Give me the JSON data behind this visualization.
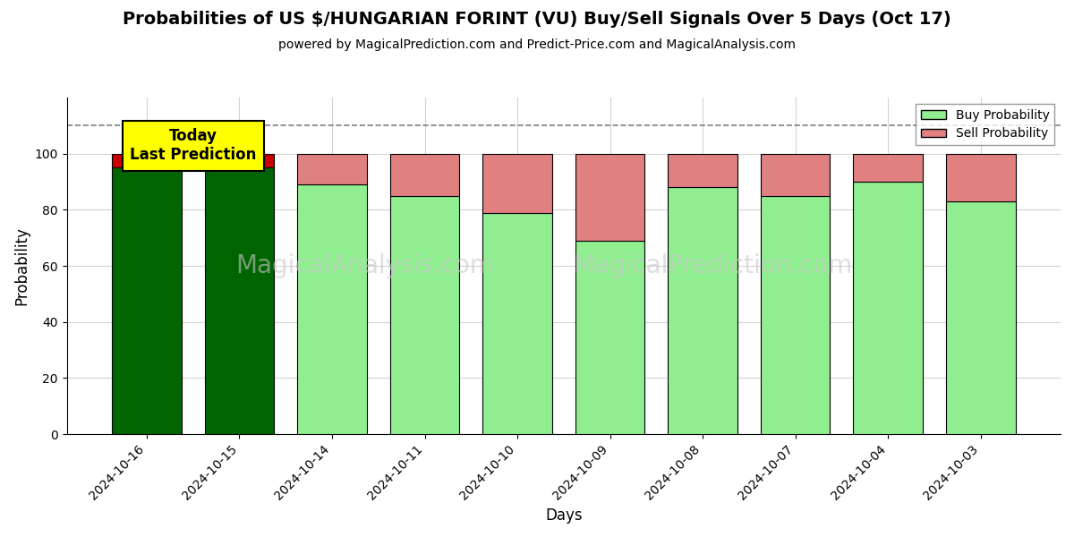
{
  "title": "Probabilities of US $/HUNGARIAN FORINT (VU) Buy/Sell Signals Over 5 Days (Oct 17)",
  "subtitle": "powered by MagicalPrediction.com and Predict-Price.com and MagicalAnalysis.com",
  "xlabel": "Days",
  "ylabel": "Probability",
  "dates": [
    "2024-10-16",
    "2024-10-15",
    "2024-10-14",
    "2024-10-11",
    "2024-10-10",
    "2024-10-09",
    "2024-10-08",
    "2024-10-07",
    "2024-10-04",
    "2024-10-03"
  ],
  "buy_probs": [
    95,
    95,
    89,
    85,
    79,
    69,
    88,
    85,
    90,
    83
  ],
  "sell_probs": [
    5,
    5,
    11,
    15,
    21,
    31,
    12,
    15,
    10,
    17
  ],
  "today_bar_buy_color": "#006400",
  "today_bar_sell_color": "#cc0000",
  "regular_buy_color": "#90EE90",
  "regular_sell_color": "#E08080",
  "today_annotation": "Today\nLast Prediction",
  "today_annotation_bg": "#FFFF00",
  "dashed_line_y": 110,
  "ylim": [
    0,
    120
  ],
  "yticks": [
    0,
    20,
    40,
    60,
    80,
    100
  ],
  "legend_buy_label": "Buy Probability",
  "legend_sell_label": "Sell Probability",
  "watermark_texts": [
    "MagicalAnalysis.com",
    "MagicalPrediction.com"
  ],
  "figsize": [
    12,
    6
  ],
  "dpi": 100
}
